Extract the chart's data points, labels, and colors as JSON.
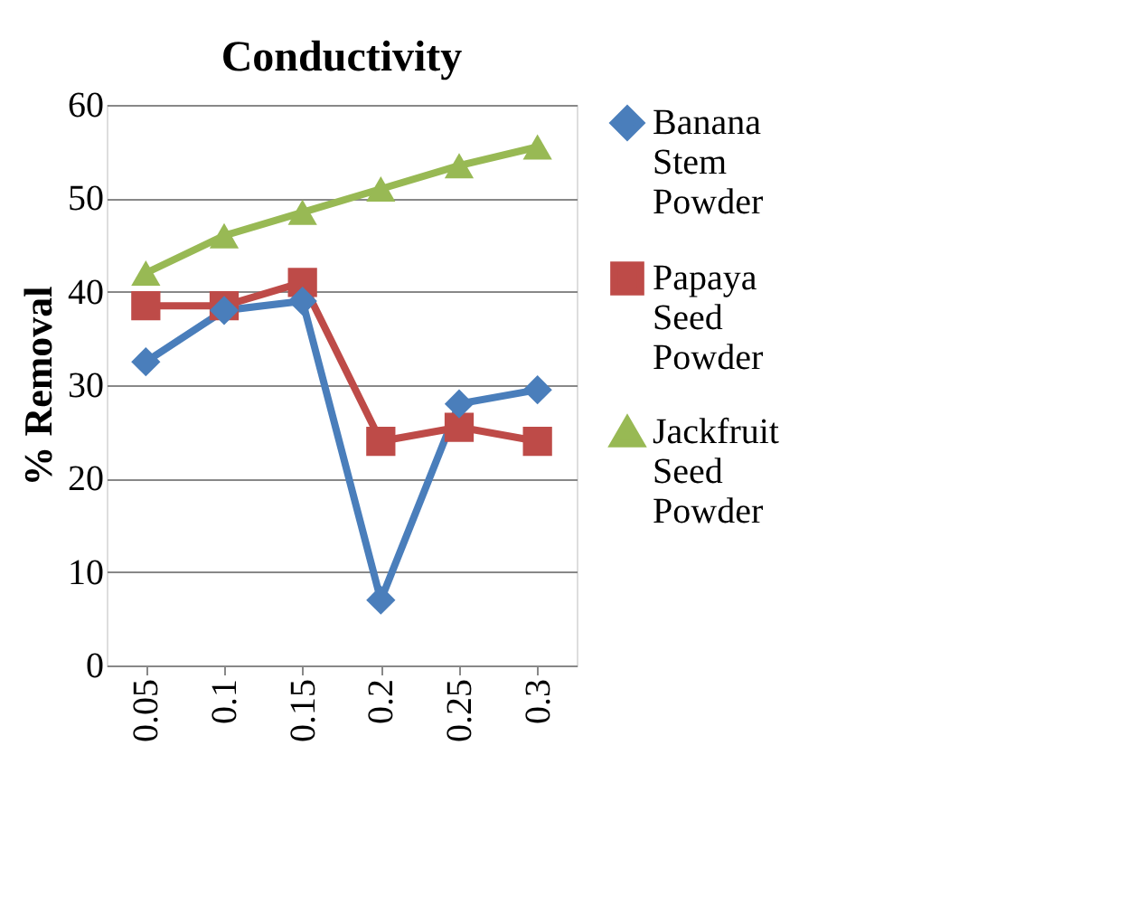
{
  "chart_data": {
    "type": "line",
    "title": "Conductivity",
    "ylabel": "% Removal",
    "categories": [
      "0.05",
      "0.1",
      "0.15",
      "0.2",
      "0.25",
      "0.3"
    ],
    "series": [
      {
        "name": "Banana Stem Powder",
        "color": "#4a7ebb",
        "marker": "diamond",
        "values": [
          32.5,
          38,
          39,
          7,
          28,
          29.5
        ]
      },
      {
        "name": "Papaya Seed Powder",
        "color": "#be4b48",
        "marker": "square",
        "values": [
          38.5,
          38.5,
          41,
          24,
          25.5,
          24
        ]
      },
      {
        "name": "Jackfruit Seed Powder",
        "color": "#98b954",
        "marker": "triangle",
        "values": [
          42,
          46,
          48.5,
          51,
          53.5,
          55.5
        ]
      }
    ],
    "ylim": [
      0,
      60
    ],
    "yticks": [
      0,
      10,
      20,
      30,
      40,
      50,
      60
    ],
    "grid": "y",
    "legend": "right"
  }
}
